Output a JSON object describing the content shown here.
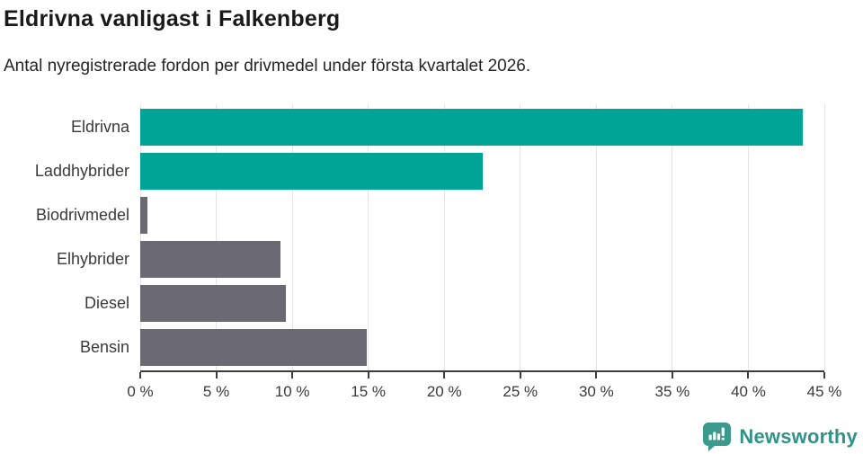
{
  "chart_data": {
    "type": "bar",
    "orientation": "horizontal",
    "title": "Eldrivna vanligast i Falkenberg",
    "subtitle": "Antal nyregistrerade fordon per drivmedel under första kvartalet 2026.",
    "categories": [
      "Eldrivna",
      "Laddhybrider",
      "Biodrivmedel",
      "Elhybrider",
      "Diesel",
      "Bensin"
    ],
    "values": [
      43.6,
      22.5,
      0.5,
      9.2,
      9.6,
      14.9
    ],
    "unit": "%",
    "xlabel": "",
    "ylabel": "",
    "xlim": [
      0,
      45
    ],
    "tick_step": 5,
    "x_tick_labels": [
      "0 %",
      "5 %",
      "10 %",
      "15 %",
      "20 %",
      "25 %",
      "30 %",
      "35 %",
      "40 %",
      "45 %"
    ],
    "grid": true,
    "legend": "none",
    "bar_colors": [
      "#00a497",
      "#00a497",
      "#6b6a72",
      "#6b6a72",
      "#6b6a72",
      "#6b6a72"
    ],
    "colors": {
      "highlight": "#00a497",
      "muted": "#6b6a72",
      "axis": "#3d3d3d",
      "gridline": "#e4e4e6"
    }
  },
  "branding": {
    "logo_text": "Newsworthy",
    "logo_text_color": "#2f9389",
    "logo_icon_color": "#3a9a8e",
    "logo_icon": "speech-bubble-bar-chart-icon"
  }
}
